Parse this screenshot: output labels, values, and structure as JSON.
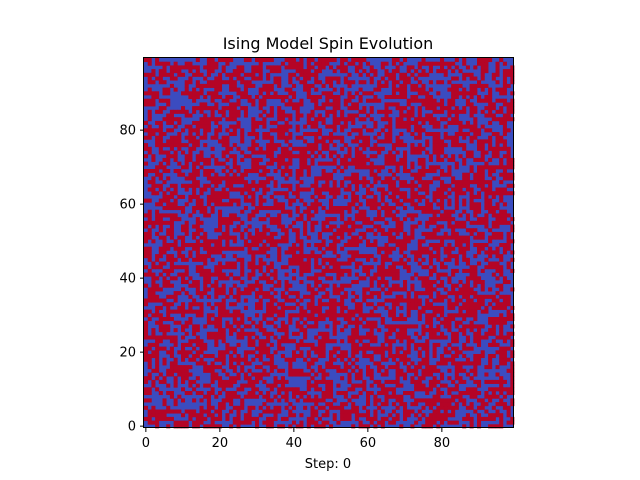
{
  "chart_data": {
    "type": "heatmap",
    "title": "Ising Model Spin Evolution",
    "xlabel": "Step: 0",
    "ylabel": "",
    "grid_size": [
      100,
      100
    ],
    "xlim": [
      0,
      99
    ],
    "ylim": [
      0,
      99
    ],
    "origin": "lower",
    "x_ticks": [
      0,
      20,
      40,
      60,
      80
    ],
    "y_ticks": [
      0,
      20,
      40,
      60,
      80
    ],
    "grid": false,
    "colormap": "coolwarm",
    "spin_values": [
      -1,
      1
    ],
    "spin_colors": {
      "-1": "#3b4cc0",
      "1": "#b40426"
    },
    "distribution": "random initial spins"
  }
}
